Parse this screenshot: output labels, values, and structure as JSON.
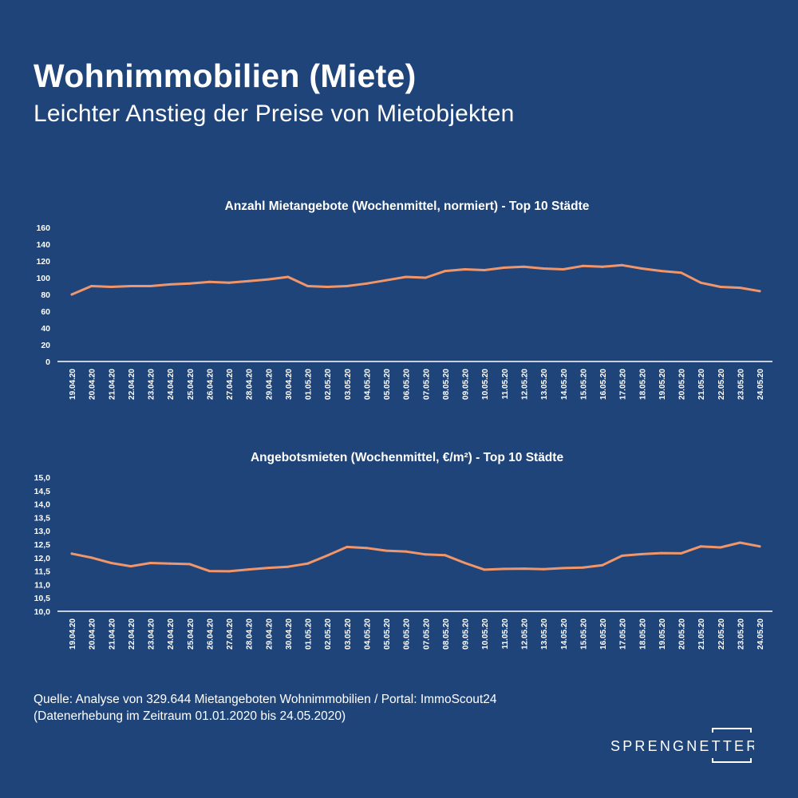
{
  "header": {
    "title": "Wohnimmobilien (Miete)",
    "subtitle": "Leichter Anstieg der Preise von Mietobjekten"
  },
  "chart_data": [
    {
      "type": "line",
      "title": "Anzahl Mietangebote (Wochenmittel, normiert) - Top 10 Städte",
      "categories": [
        "19.04.20",
        "20.04.20",
        "21.04.20",
        "22.04.20",
        "23.04.20",
        "24.04.20",
        "25.04.20",
        "26.04.20",
        "27.04.20",
        "28.04.20",
        "29.04.20",
        "30.04.20",
        "01.05.20",
        "02.05.20",
        "03.05.20",
        "04.05.20",
        "05.05.20",
        "06.05.20",
        "07.05.20",
        "08.05.20",
        "09.05.20",
        "10.05.20",
        "11.05.20",
        "12.05.20",
        "13.05.20",
        "14.05.20",
        "15.05.20",
        "16.05.20",
        "17.05.20",
        "18.05.20",
        "19.05.20",
        "20.05.20",
        "21.05.20",
        "22.05.20",
        "23.05.20",
        "24.05.20"
      ],
      "values": [
        80,
        90,
        89,
        90,
        90,
        92,
        93,
        95,
        94,
        96,
        98,
        101,
        90,
        89,
        90,
        93,
        97,
        101,
        100,
        108,
        110,
        109,
        112,
        113,
        111,
        110,
        114,
        113,
        115,
        111,
        108,
        106,
        94,
        89,
        88,
        84
      ],
      "ylim": [
        0,
        160
      ],
      "yticks": [
        "0",
        "20",
        "40",
        "60",
        "80",
        "100",
        "120",
        "140",
        "160"
      ],
      "grid": false,
      "line_color": "#f0966a"
    },
    {
      "type": "line",
      "title": "Angebotsmieten (Wochenmittel, €/m²) - Top 10 Städte",
      "categories": [
        "19.04.20",
        "20.04.20",
        "21.04.20",
        "22.04.20",
        "23.04.20",
        "24.04.20",
        "25.04.20",
        "26.04.20",
        "27.04.20",
        "28.04.20",
        "29.04.20",
        "30.04.20",
        "01.05.20",
        "02.05.20",
        "03.05.20",
        "04.05.20",
        "05.05.20",
        "06.05.20",
        "07.05.20",
        "08.05.20",
        "09.05.20",
        "10.05.20",
        "11.05.20",
        "12.05.20",
        "13.05.20",
        "14.05.20",
        "15.05.20",
        "16.05.20",
        "17.05.20",
        "18.05.20",
        "19.05.20",
        "20.05.20",
        "21.05.20",
        "22.05.20",
        "23.05.20",
        "24.05.20"
      ],
      "values": [
        12.15,
        12.0,
        11.8,
        11.68,
        11.8,
        11.78,
        11.76,
        11.5,
        11.49,
        11.56,
        11.62,
        11.66,
        11.78,
        12.08,
        12.4,
        12.36,
        12.26,
        12.23,
        12.12,
        12.09,
        11.8,
        11.55,
        11.58,
        11.59,
        11.57,
        11.61,
        11.63,
        11.72,
        12.07,
        12.13,
        12.17,
        12.16,
        12.42,
        12.38,
        12.56,
        12.42
      ],
      "ylim": [
        10.0,
        15.0
      ],
      "yticks": [
        "10,0",
        "10,5",
        "11,0",
        "11,5",
        "12,0",
        "12,5",
        "13,0",
        "13,5",
        "14,0",
        "14,5",
        "15,0"
      ],
      "grid": false,
      "line_color": "#f0966a"
    }
  ],
  "footer": {
    "source_line1": "Quelle: Analyse von 329.644 Mietangeboten Wohnimmobilien / Portal: ImmoScout24",
    "source_line2": "(Datenerhebung im Zeitraum 01.01.2020 bis 24.05.2020)",
    "logo_text": "SPRENGNETTER"
  },
  "colors": {
    "background": "#1f4479",
    "text": "#ffffff",
    "axis": "#ffffff",
    "line": "#f0966a"
  }
}
